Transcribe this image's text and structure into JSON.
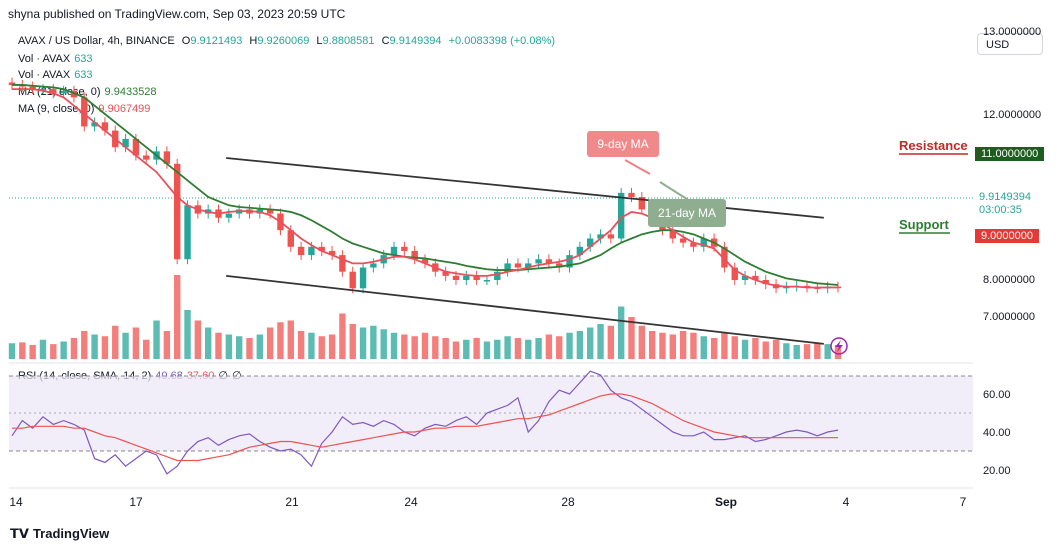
{
  "header": {
    "publisher": "shyna published on TradingView.com, Sep 03, 2023 20:59 UTC"
  },
  "currency_button": "USD",
  "legend": {
    "symbol": "AVAX / US Dollar, 4h, BINANCE",
    "o_label": "O",
    "o": "9.9121493",
    "h_label": "H",
    "h": "9.9260069",
    "l_label": "L",
    "l": "9.8808581",
    "c_label": "C",
    "c": "9.9149394",
    "change": "+0.0083398 (+0.08%)",
    "vol1_label": "Vol · AVAX",
    "vol1": "633",
    "vol2_label": "Vol · AVAX",
    "vol2": "633",
    "ma21_label": "MA (21, close, 0)",
    "ma21": "9.9433528",
    "ma9_label": "MA (9, close, 0)",
    "ma9": "9.9067499",
    "rsi_label": "RSI (14, close, SMA, 14, 2)",
    "rsi": "40.68",
    "rsi_sma": "37.60",
    "rsi_x1": "∅",
    "rsi_x2": "∅"
  },
  "annotations": {
    "ma9_box": "9-day MA",
    "ma21_box": "21-day MA",
    "resistance": "Resistance",
    "support": "Support",
    "resistance_value": "11.0000000",
    "support_value": "9.0000000",
    "price_value": "9.9149394",
    "countdown": "03:00:35"
  },
  "colors": {
    "up": "#26a69a",
    "down": "#ef5350",
    "ma9": "#e8505b",
    "ma21": "#2e7d32",
    "trend": "#333333",
    "rsi": "#7e57c2",
    "rsi_sma": "#ef5350",
    "resistance": "#c62828",
    "support": "#2e7d32"
  },
  "chart_data": {
    "type": "candlestick",
    "price_axis": {
      "ticks": [
        "13.0000000",
        "12.0000000",
        "11.0000000",
        "10.0000000",
        "9.0000000",
        "8.0000000",
        "7.0000000"
      ]
    },
    "rsi_axis": {
      "ticks": [
        "60.00",
        "40.00",
        "20.00"
      ],
      "upper_band": 70,
      "lower_band": 30
    },
    "time_axis": {
      "ticks": [
        "14",
        "17",
        "21",
        "24",
        "28",
        "Sep",
        "4",
        "7"
      ]
    },
    "price_path": [
      12.35,
      12.33,
      12.3,
      12.3,
      12.25,
      12.28,
      12.2,
      11.85,
      11.9,
      11.8,
      11.6,
      11.7,
      11.5,
      11.45,
      11.55,
      11.4,
      10.25,
      10.9,
      10.8,
      10.85,
      10.75,
      10.8,
      10.85,
      10.8,
      10.85,
      10.8,
      10.6,
      10.4,
      10.3,
      10.4,
      10.35,
      10.3,
      10.1,
      9.9,
      10.15,
      10.2,
      10.3,
      10.4,
      10.35,
      10.25,
      10.2,
      10.1,
      10.05,
      10.0,
      10.05,
      10.0,
      10.0,
      10.1,
      10.2,
      10.15,
      10.2,
      10.25,
      10.2,
      10.15,
      10.3,
      10.4,
      10.5,
      10.55,
      10.5,
      11.05,
      11.0,
      10.85,
      10.7,
      10.6,
      10.5,
      10.45,
      10.4,
      10.5,
      10.4,
      10.15,
      10.0,
      10.05,
      10.0,
      9.95,
      9.9,
      9.92,
      9.93,
      9.91,
      9.9,
      9.92,
      9.91
    ],
    "volume": [
      90,
      95,
      80,
      110,
      85,
      100,
      120,
      160,
      140,
      130,
      190,
      150,
      180,
      110,
      220,
      160,
      480,
      280,
      220,
      180,
      150,
      140,
      130,
      120,
      140,
      180,
      210,
      220,
      160,
      150,
      130,
      140,
      260,
      200,
      180,
      190,
      170,
      150,
      140,
      130,
      150,
      130,
      120,
      100,
      110,
      120,
      100,
      110,
      130,
      120,
      110,
      120,
      140,
      130,
      150,
      160,
      180,
      200,
      190,
      300,
      240,
      190,
      160,
      150,
      140,
      160,
      150,
      130,
      120,
      150,
      130,
      110,
      120,
      100,
      110,
      90,
      80,
      85,
      90,
      85,
      80
    ],
    "rsi": [
      38,
      46,
      42,
      48,
      44,
      46,
      44,
      41,
      26,
      24,
      28,
      22,
      26,
      30,
      28,
      18,
      22,
      30,
      35,
      37,
      33,
      36,
      38,
      39,
      35,
      32,
      30,
      31,
      28,
      22,
      34,
      40,
      48,
      44,
      45,
      43,
      46,
      44,
      40,
      38,
      42,
      44,
      43,
      46,
      48,
      44,
      50,
      52,
      54,
      58,
      40,
      46,
      56,
      62,
      60,
      66,
      72,
      70,
      62,
      58,
      56,
      52,
      48,
      44,
      40,
      38,
      38,
      40,
      36,
      36,
      37,
      38,
      35,
      36,
      38,
      40,
      41,
      40,
      38,
      40,
      41
    ],
    "rsi_sma": [
      42,
      42,
      43,
      43,
      43,
      43,
      42,
      42,
      40,
      38,
      37,
      35,
      33,
      31,
      29,
      27,
      25,
      25,
      25,
      26,
      27,
      28,
      30,
      32,
      33,
      34,
      35,
      35,
      34,
      33,
      32,
      33,
      34,
      35,
      36,
      37,
      38,
      39,
      40,
      40,
      41,
      42,
      42,
      43,
      43,
      43,
      44,
      45,
      46,
      47,
      47,
      48,
      49,
      51,
      53,
      55,
      57,
      59,
      60,
      60,
      59,
      57,
      55,
      52,
      49,
      46,
      44,
      42,
      40,
      39,
      38,
      37,
      37,
      37,
      37,
      37,
      37,
      37,
      37,
      37,
      37
    ],
    "ma9_path": [
      12.3,
      12.3,
      12.3,
      12.28,
      12.25,
      12.2,
      12.1,
      12.0,
      11.9,
      11.8,
      11.7,
      11.6,
      11.5,
      11.4,
      11.3,
      11.15,
      11.0,
      10.9,
      10.85,
      10.82,
      10.8,
      10.82,
      10.83,
      10.83,
      10.82,
      10.78,
      10.7,
      10.6,
      10.5,
      10.42,
      10.35,
      10.3,
      10.25,
      10.2,
      10.2,
      10.22,
      10.25,
      10.28,
      10.28,
      10.25,
      10.2,
      10.15,
      10.1,
      10.08,
      10.06,
      10.05,
      10.05,
      10.07,
      10.1,
      10.12,
      10.15,
      10.18,
      10.2,
      10.22,
      10.25,
      10.3,
      10.4,
      10.5,
      10.6,
      10.75,
      10.82,
      10.8,
      10.75,
      10.68,
      10.6,
      10.52,
      10.45,
      10.42,
      10.38,
      10.25,
      10.12,
      10.05,
      10.0,
      9.96,
      9.93,
      9.92,
      9.92,
      9.91,
      9.91,
      9.91,
      9.91
    ],
    "ma21_path": [
      12.35,
      12.35,
      12.34,
      12.33,
      12.32,
      12.3,
      12.25,
      12.2,
      12.1,
      12.0,
      11.9,
      11.8,
      11.7,
      11.6,
      11.5,
      11.4,
      11.3,
      11.2,
      11.1,
      11.0,
      10.95,
      10.9,
      10.88,
      10.87,
      10.86,
      10.85,
      10.84,
      10.82,
      10.78,
      10.72,
      10.65,
      10.58,
      10.5,
      10.44,
      10.4,
      10.36,
      10.32,
      10.3,
      10.28,
      10.27,
      10.26,
      10.24,
      10.22,
      10.2,
      10.17,
      10.15,
      10.13,
      10.12,
      10.12,
      10.12,
      10.13,
      10.14,
      10.15,
      10.16,
      10.18,
      10.2,
      10.25,
      10.3,
      10.38,
      10.45,
      10.5,
      10.55,
      10.58,
      10.6,
      10.6,
      10.58,
      10.55,
      10.5,
      10.45,
      10.38,
      10.3,
      10.22,
      10.16,
      10.1,
      10.06,
      10.02,
      10.0,
      9.98,
      9.96,
      9.95,
      9.94
    ],
    "trendlines": [
      {
        "name": "upper",
        "from": [
          0.19,
          11.47
        ],
        "to": [
          0.81,
          10.75
        ]
      },
      {
        "name": "lower",
        "from": [
          0.19,
          10.05
        ],
        "to": [
          0.81,
          9.23
        ]
      }
    ]
  }
}
